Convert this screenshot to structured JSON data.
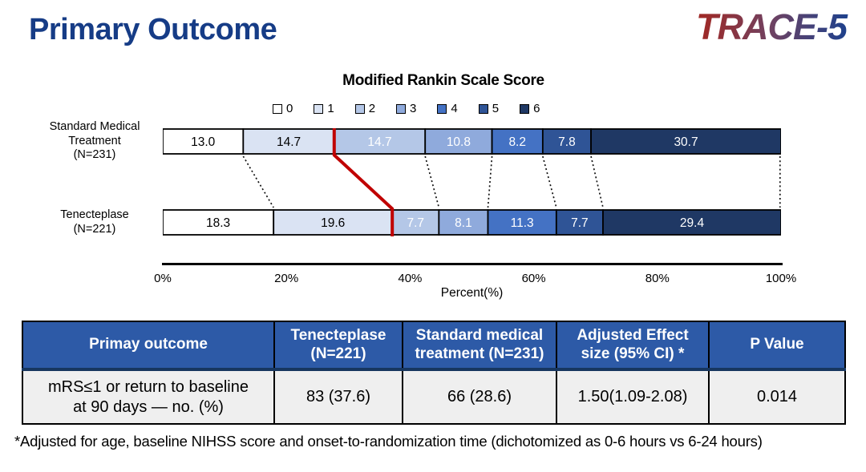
{
  "header": {
    "title": "Primary Outcome",
    "logo": "TRACE-5"
  },
  "chart": {
    "title": "Modified Rankin Scale Score",
    "xlabel": "Percent(%)",
    "row_labels": [
      "Standard Medical\nTreatment\n(N=231)",
      "Tenecteplase\n(N=221)"
    ],
    "legend": [
      {
        "label": "0",
        "color": "#ffffff"
      },
      {
        "label": "1",
        "color": "#dae3f3"
      },
      {
        "label": "2",
        "color": "#b4c7e7"
      },
      {
        "label": "3",
        "color": "#8faadc"
      },
      {
        "label": "4",
        "color": "#4472c4"
      },
      {
        "label": "5",
        "color": "#2f5496"
      },
      {
        "label": "6",
        "color": "#1f3864"
      }
    ],
    "ticks": [
      "0%",
      "20%",
      "40%",
      "60%",
      "80%",
      "100%"
    ],
    "red_line_color": "#c00000"
  },
  "chart_data": {
    "type": "bar",
    "variant": "horizontal-stacked",
    "title": "Modified Rankin Scale Score",
    "xlabel": "Percent(%)",
    "xlim": [
      0,
      100
    ],
    "x_ticks": [
      "0%",
      "20%",
      "40%",
      "60%",
      "80%",
      "100%"
    ],
    "categories": [
      "Standard Medical Treatment (N=231)",
      "Tenecteplase (N=221)"
    ],
    "series": [
      {
        "name": "0",
        "values": [
          13.0,
          18.3
        ]
      },
      {
        "name": "1",
        "values": [
          14.7,
          19.6
        ]
      },
      {
        "name": "2",
        "values": [
          14.7,
          7.7
        ]
      },
      {
        "name": "3",
        "values": [
          10.8,
          8.1
        ]
      },
      {
        "name": "4",
        "values": [
          8.2,
          11.3
        ]
      },
      {
        "name": "5",
        "values": [
          7.8,
          7.7
        ]
      },
      {
        "name": "6",
        "values": [
          30.7,
          29.4
        ]
      }
    ],
    "annotations": [
      "Red reference line separates mRS 0-1 from mRS 2-6 between the two bars"
    ],
    "legend_position": "top"
  },
  "table": {
    "headers": [
      "Primay outcome",
      "Tenecteplase\n(N=221)",
      "Standard medical\ntreatment (N=231)",
      "Adjusted Effect\nsize (95% CI) *",
      "P Value"
    ],
    "row": {
      "label": "mRS≤1 or  return to baseline\nat 90 days — no. (%)",
      "tenecteplase": "83 (37.6)",
      "standard": "66 (28.6)",
      "effect_size": "1.50(1.09-2.08)",
      "p_value": "0.014"
    }
  },
  "footnote": "*Adjusted for age, baseline NIHSS score and onset-to-randomization time (dichotomized as 0-6 hours vs 6-24 hours)"
}
